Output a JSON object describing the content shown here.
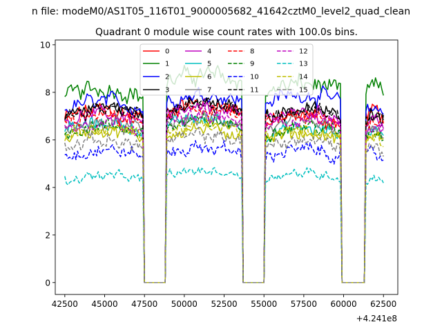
{
  "chart_data": {
    "type": "line",
    "suptitle": "n file: modeM0/AS1T05_116T01_9000005682_41642cztM0_level2_quad_clean",
    "title": "Quadrant 0 module wise count rates with 100.0s bins.",
    "xlabel": "",
    "ylabel": "",
    "x_offset_label": "+4.241e8",
    "xlim": [
      41900,
      63400
    ],
    "ylim": [
      -0.5,
      10.2
    ],
    "xticks": [
      42500,
      45000,
      47500,
      50000,
      52500,
      55000,
      57500,
      60000,
      62500
    ],
    "xtick_labels": [
      "42500",
      "45000",
      "47500",
      "50000",
      "52500",
      "55000",
      "57500",
      "60000",
      "62500"
    ],
    "yticks": [
      0,
      2,
      4,
      6,
      8,
      10
    ],
    "ytick_labels": [
      "0",
      "2",
      "4",
      "6",
      "8",
      "10"
    ],
    "gaps": [
      [
        47650,
        48650
      ],
      [
        53850,
        54950
      ],
      [
        60050,
        61250
      ]
    ],
    "segments": [
      [
        42500,
        47450
      ],
      [
        48850,
        53650
      ],
      [
        55050,
        59850
      ],
      [
        61350,
        62550
      ]
    ],
    "bin_seconds": 100,
    "legend_location": "upper center",
    "series": [
      {
        "name": "0",
        "color": "#ff0000",
        "style": "solid",
        "base": [
          6.9,
          7.2,
          6.6,
          6.9
        ],
        "amp": 0.45
      },
      {
        "name": "1",
        "color": "#008000",
        "style": "solid",
        "base": [
          7.8,
          8.4,
          8.0,
          7.9
        ],
        "amp": 0.45
      },
      {
        "name": "2",
        "color": "#0000ff",
        "style": "solid",
        "base": [
          7.3,
          7.6,
          7.6,
          7.0
        ],
        "amp": 0.4
      },
      {
        "name": "3",
        "color": "#000000",
        "style": "solid",
        "base": [
          7.1,
          7.2,
          7.0,
          6.9
        ],
        "amp": 0.35
      },
      {
        "name": "4",
        "color": "#bf00bf",
        "style": "solid",
        "base": [
          6.8,
          7.0,
          6.9,
          6.6
        ],
        "amp": 0.35
      },
      {
        "name": "5",
        "color": "#00bfbf",
        "style": "solid",
        "base": [
          6.4,
          6.6,
          6.2,
          6.2
        ],
        "amp": 0.35
      },
      {
        "name": "6",
        "color": "#bfbf00",
        "style": "solid",
        "base": [
          6.1,
          6.2,
          6.0,
          5.9
        ],
        "amp": 0.35
      },
      {
        "name": "7",
        "color": "#808080",
        "style": "solid",
        "base": [
          6.4,
          6.6,
          6.4,
          6.1
        ],
        "amp": 0.35
      },
      {
        "name": "8",
        "color": "#ff0000",
        "style": "dashed",
        "base": [
          6.7,
          7.0,
          6.7,
          6.6
        ],
        "amp": 0.35
      },
      {
        "name": "9",
        "color": "#008000",
        "style": "dashed",
        "base": [
          6.3,
          6.5,
          6.3,
          6.1
        ],
        "amp": 0.35
      },
      {
        "name": "10",
        "color": "#0000ff",
        "style": "dashed",
        "base": [
          5.3,
          5.4,
          5.3,
          5.1
        ],
        "amp": 0.35
      },
      {
        "name": "11",
        "color": "#000000",
        "style": "dashed",
        "base": [
          7.0,
          7.2,
          7.0,
          6.8
        ],
        "amp": 0.35
      },
      {
        "name": "12",
        "color": "#bf00bf",
        "style": "dashed",
        "base": [
          6.5,
          6.7,
          6.6,
          6.3
        ],
        "amp": 0.35
      },
      {
        "name": "13",
        "color": "#00bfbf",
        "style": "dashed",
        "base": [
          4.3,
          4.5,
          4.4,
          4.2
        ],
        "amp": 0.25
      },
      {
        "name": "14",
        "color": "#bfbf00",
        "style": "dashed",
        "base": [
          6.2,
          6.3,
          6.1,
          5.9
        ],
        "amp": 0.35
      },
      {
        "name": "15",
        "color": "#808080",
        "style": "dashed",
        "base": [
          5.7,
          5.9,
          5.7,
          5.5
        ],
        "amp": 0.35
      }
    ]
  }
}
